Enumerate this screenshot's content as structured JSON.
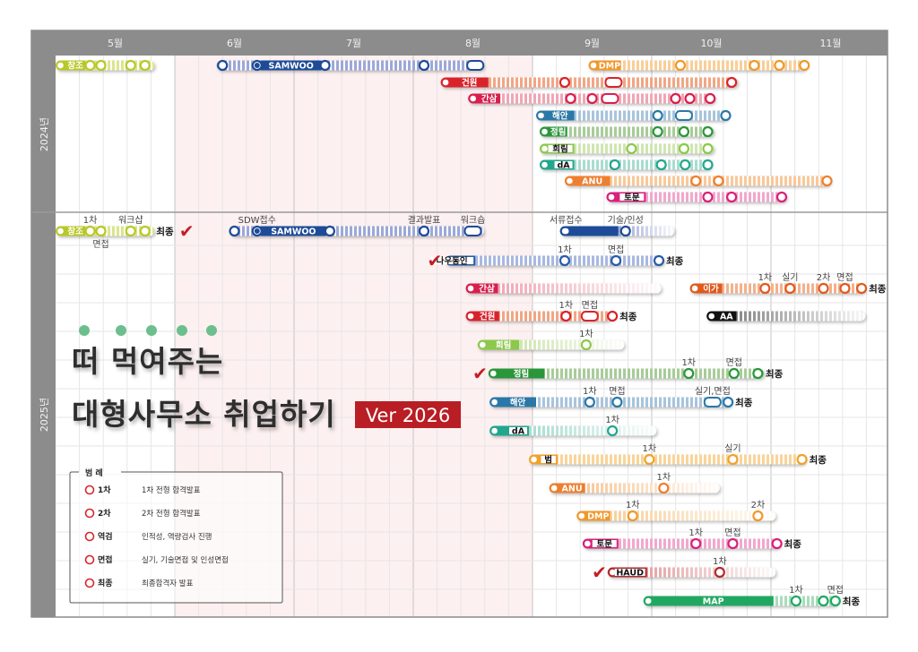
{
  "header": {
    "months": [
      "5월",
      "6월",
      "7월",
      "8월",
      "9월",
      "10월",
      "11월"
    ]
  },
  "years": [
    "2024년",
    "2025년"
  ],
  "title": {
    "line1": "떠 먹여주는",
    "line2": "대형사무소 취업하기",
    "version": "Ver 2026"
  },
  "legend": {
    "title": "범   례",
    "marker_color": "#d8262c",
    "items": [
      {
        "key": "1차",
        "desc": "1차 전형 합격발표"
      },
      {
        "key": "2차",
        "desc": "2차 전형 합격발표"
      },
      {
        "key": "역검",
        "desc": "인적성, 역량검사 진행"
      },
      {
        "key": "면접",
        "desc": "실기, 기술면접 및 인성면접"
      },
      {
        "key": "최종",
        "desc": "최종합격자 발표"
      }
    ]
  },
  "chart_data": {
    "type": "gantt",
    "x_unit": "month (5.0 = start of May)",
    "xlim": [
      5,
      12
    ],
    "highlight_range": [
      6,
      9
    ],
    "grid": true,
    "sections": [
      {
        "year": "2024년",
        "bars": [
          {
            "label": "창조",
            "color": "#b8c82a",
            "light": "#dbe58e",
            "start": 5.0,
            "end": 5.83,
            "solid_end": 5.25,
            "milestones": [
              {
                "at": 5.29
              },
              {
                "at": 5.38
              },
              {
                "at": 5.63
              },
              {
                "at": 5.75
              }
            ]
          },
          {
            "label": "SAMWOO",
            "color": "#1d4b98",
            "light": "#9ca8d8",
            "start": 6.35,
            "end": 8.59,
            "solid_start": 6.69,
            "solid_end": 7.26,
            "milestones": [
              {
                "at": 6.4
              },
              {
                "at": 6.69,
                "filled": true
              },
              {
                "at": 7.26
              },
              {
                "at": 8.09
              },
              {
                "at": 8.52,
                "shape": "pill"
              }
            ]
          },
          {
            "label": "DMP",
            "color": "#f0982a",
            "light": "#f8cf98",
            "start": 9.47,
            "end": 11.3,
            "solid_end": 9.74,
            "milestones": [
              {
                "at": 10.24
              },
              {
                "at": 10.86
              },
              {
                "at": 11.07
              },
              {
                "at": 11.28
              }
            ]
          },
          {
            "label": "건원",
            "color": "#d9232a",
            "light": "#f1a685",
            "start": 8.23,
            "end": 10.72,
            "solid_end": 8.63,
            "milestones": [
              {
                "at": 9.27
              },
              {
                "at": 9.68,
                "shape": "pill"
              },
              {
                "at": 10.67
              }
            ]
          },
          {
            "label": "간삼",
            "color": "#d81f4e",
            "light": "#f1a6b3",
            "start": 8.46,
            "end": 10.53,
            "solid_end": 8.73,
            "milestones": [
              {
                "at": 9.32
              },
              {
                "at": 9.5
              },
              {
                "at": 9.65,
                "shape": "pill"
              },
              {
                "at": 10.2
              },
              {
                "at": 10.32
              },
              {
                "at": 10.49
              }
            ]
          },
          {
            "label": "해안",
            "color": "#2a78a8",
            "light": "#a8c4dc",
            "start": 9.03,
            "end": 10.64,
            "solid_end": 9.35,
            "milestones": [
              {
                "at": 10.05
              },
              {
                "at": 10.27,
                "shape": "pill"
              },
              {
                "at": 10.62
              }
            ]
          },
          {
            "label": "정림",
            "color": "#2a963a",
            "light": "#a8cc98",
            "start": 9.06,
            "end": 10.52,
            "solid_end": 9.29,
            "milestones": [
              {
                "at": 10.05
              },
              {
                "at": 10.27
              },
              {
                "at": 10.47
              }
            ]
          },
          {
            "label": "희림",
            "color": "#8cc84a",
            "light": "#cfe6b0",
            "start": 9.06,
            "end": 10.52,
            "solid_end": 9.35,
            "boxed": true,
            "milestones": [
              {
                "at": 9.83
              },
              {
                "at": 10.27
              },
              {
                "at": 10.47
              }
            ]
          },
          {
            "label": "dA",
            "color": "#22a68e",
            "light": "#a8dccf",
            "start": 9.06,
            "end": 10.5,
            "solid_end": 9.35,
            "boxed": true,
            "milestones": [
              {
                "at": 9.69
              },
              {
                "at": 10.08
              },
              {
                "at": 10.28
              },
              {
                "at": 10.47
              }
            ]
          },
          {
            "label": "ANU",
            "color": "#ee7f2e",
            "light": "#f8c89a",
            "start": 9.27,
            "end": 11.5,
            "solid_end": 9.65,
            "milestones": [
              {
                "at": 10.37
              },
              {
                "at": 10.56
              },
              {
                "at": 11.47
              }
            ]
          },
          {
            "label": "토문",
            "color": "#d8207c",
            "light": "#f1a8cc",
            "start": 9.62,
            "end": 11.13,
            "solid_end": 9.95,
            "boxed": true,
            "milestones": [
              {
                "at": 10.47
              },
              {
                "at": 10.67
              },
              {
                "at": 11.09
              }
            ]
          }
        ]
      },
      {
        "year": "2025년",
        "bars": [
          {
            "label": "창조",
            "color": "#b8c82a",
            "light": "#dbe58e",
            "start": 5.0,
            "end": 5.83,
            "solid_end": 5.25,
            "final": "최종",
            "check": 6.1,
            "milestones": [
              {
                "at": 5.29,
                "note": "1차"
              },
              {
                "at": 5.38,
                "note": "면접",
                "below": true
              },
              {
                "at": 5.63,
                "note": "워크샵"
              },
              {
                "at": 5.75
              }
            ]
          },
          {
            "label": "SAMWOO",
            "color": "#1d4b98",
            "light": "#9ca8d8",
            "start": 6.46,
            "end": 8.59,
            "solid_start": 6.69,
            "solid_end": 7.3,
            "milestones": [
              {
                "at": 6.5
              },
              {
                "at": 6.69,
                "filled": true,
                "note": "SDW접수"
              },
              {
                "at": 7.3
              },
              {
                "at": 8.09,
                "note": "결과발표"
              },
              {
                "at": 8.5,
                "shape": "pill",
                "note": "워크숍"
              }
            ]
          },
          {
            "label": "",
            "color": "#1d4b98",
            "light": "#9ca8d8",
            "start": 9.23,
            "end": 10.19,
            "solid_end": 9.72,
            "fade": true,
            "milestones": [
              {
                "at": 9.28,
                "note": "서류접수",
                "plain": true
              },
              {
                "at": 9.78,
                "note": "기술/인성"
              }
            ]
          },
          {
            "label": "나우동인",
            "color": "#2a5aa8",
            "light": "#a8b8e0",
            "start": 8.27,
            "end": 10.1,
            "solid_end": 8.52,
            "boxed": true,
            "final": "최종",
            "check": 8.18,
            "milestones": [
              {
                "at": 9.27,
                "note": "1차"
              },
              {
                "at": 9.7,
                "note": "면접"
              },
              {
                "at": 10.06
              }
            ]
          },
          {
            "label": "간삼",
            "color": "#d81f4e",
            "light": "#f1a6b3",
            "start": 8.44,
            "end": 10.08,
            "solid_end": 8.71,
            "fade": true,
            "milestones": []
          },
          {
            "label": "이가",
            "color": "#e05a1e",
            "light": "#f4b08c",
            "start": 10.32,
            "end": 11.79,
            "solid_end": 10.59,
            "final": "최종",
            "milestones": [
              {
                "at": 10.95,
                "note": "1차"
              },
              {
                "at": 11.16,
                "note": "실기"
              },
              {
                "at": 11.44,
                "note": "2차"
              },
              {
                "at": 11.62,
                "note": "면접"
              },
              {
                "at": 11.76
              }
            ]
          },
          {
            "label": "건원",
            "color": "#d9232a",
            "light": "#f1a685",
            "start": 8.44,
            "end": 9.66,
            "solid_end": 8.72,
            "final": "최종",
            "milestones": [
              {
                "at": 9.28,
                "note": "1차"
              },
              {
                "at": 9.48,
                "shape": "pill",
                "note": "면접"
              },
              {
                "at": 9.67
              }
            ]
          },
          {
            "label": "AA",
            "color": "#111111",
            "light": "#888888",
            "start": 10.46,
            "end": 11.79,
            "solid_end": 10.71,
            "fade": true,
            "milestones": []
          },
          {
            "label": "희림",
            "color": "#8cc84a",
            "light": "#cfe6b0",
            "start": 8.54,
            "end": 9.77,
            "solid_end": 8.89,
            "fade": true,
            "milestones": [
              {
                "at": 9.45,
                "note": "1차"
              }
            ]
          },
          {
            "label": "정림",
            "color": "#2a963a",
            "light": "#a8cc98",
            "start": 8.63,
            "end": 10.94,
            "solid_end": 9.1,
            "final": "최종",
            "check": 8.56,
            "milestones": [
              {
                "at": 10.31,
                "note": "1차"
              },
              {
                "at": 10.69,
                "note": "면접"
              },
              {
                "at": 10.89
              }
            ]
          },
          {
            "label": "해안",
            "color": "#2a78a8",
            "light": "#a8c4dc",
            "start": 8.64,
            "end": 10.67,
            "solid_end": 9.03,
            "final": "최종",
            "milestones": [
              {
                "at": 9.48,
                "note": "1차"
              },
              {
                "at": 9.71,
                "note": "면접"
              },
              {
                "at": 10.51,
                "shape": "pill",
                "note": "실기,면접"
              },
              {
                "at": 10.64
              }
            ]
          },
          {
            "label": "dA",
            "color": "#22a68e",
            "light": "#a8dccf",
            "start": 8.64,
            "end": 10.04,
            "solid_end": 8.97,
            "boxed": true,
            "fade": true,
            "milestones": [
              {
                "at": 9.67,
                "note": "1차"
              }
            ]
          },
          {
            "label": "범",
            "color": "#f0a22a",
            "light": "#f8d49a",
            "start": 8.97,
            "end": 11.29,
            "solid_end": 9.21,
            "boxed": true,
            "final": "최종",
            "milestones": [
              {
                "at": 9.98,
                "note": "1차"
              },
              {
                "at": 10.68,
                "note": "실기"
              },
              {
                "at": 11.26
              }
            ]
          },
          {
            "label": "ANU",
            "color": "#ee7f2e",
            "light": "#f8c89a",
            "start": 9.14,
            "end": 10.57,
            "solid_end": 9.44,
            "fade": true,
            "milestones": [
              {
                "at": 10.1,
                "note": "1차"
              }
            ]
          },
          {
            "label": "DMP",
            "color": "#f0982a",
            "light": "#f8cf98",
            "start": 9.37,
            "end": 11.04,
            "solid_end": 9.65,
            "fade": true,
            "milestones": [
              {
                "at": 9.84,
                "note": "1차"
              },
              {
                "at": 10.89,
                "note": "2차"
              }
            ]
          },
          {
            "label": "토문",
            "color": "#d8207c",
            "light": "#f1a8cc",
            "start": 9.42,
            "end": 11.08,
            "solid_end": 9.72,
            "boxed": true,
            "final": "최종",
            "milestones": [
              {
                "at": 10.37,
                "note": "1차"
              },
              {
                "at": 10.68,
                "note": "면접"
              },
              {
                "at": 11.05
              }
            ]
          },
          {
            "label": "HAUD",
            "color": "#b02a2e",
            "light": "#e4a4a4",
            "start": 9.63,
            "end": 11.04,
            "solid_end": 9.96,
            "boxed": true,
            "fade": true,
            "check": 9.56,
            "milestones": [
              {
                "at": 10.57,
                "note": "1차"
              }
            ]
          },
          {
            "label": "MAP",
            "color": "#20a862",
            "light": "#a8dcbc",
            "start": 9.93,
            "end": 11.56,
            "solid_end": 11.02,
            "final": "최종",
            "milestones": [
              {
                "at": 11.21,
                "note": "1차"
              },
              {
                "at": 11.44
              },
              {
                "at": 11.54,
                "note": "면접"
              }
            ]
          }
        ]
      }
    ]
  }
}
